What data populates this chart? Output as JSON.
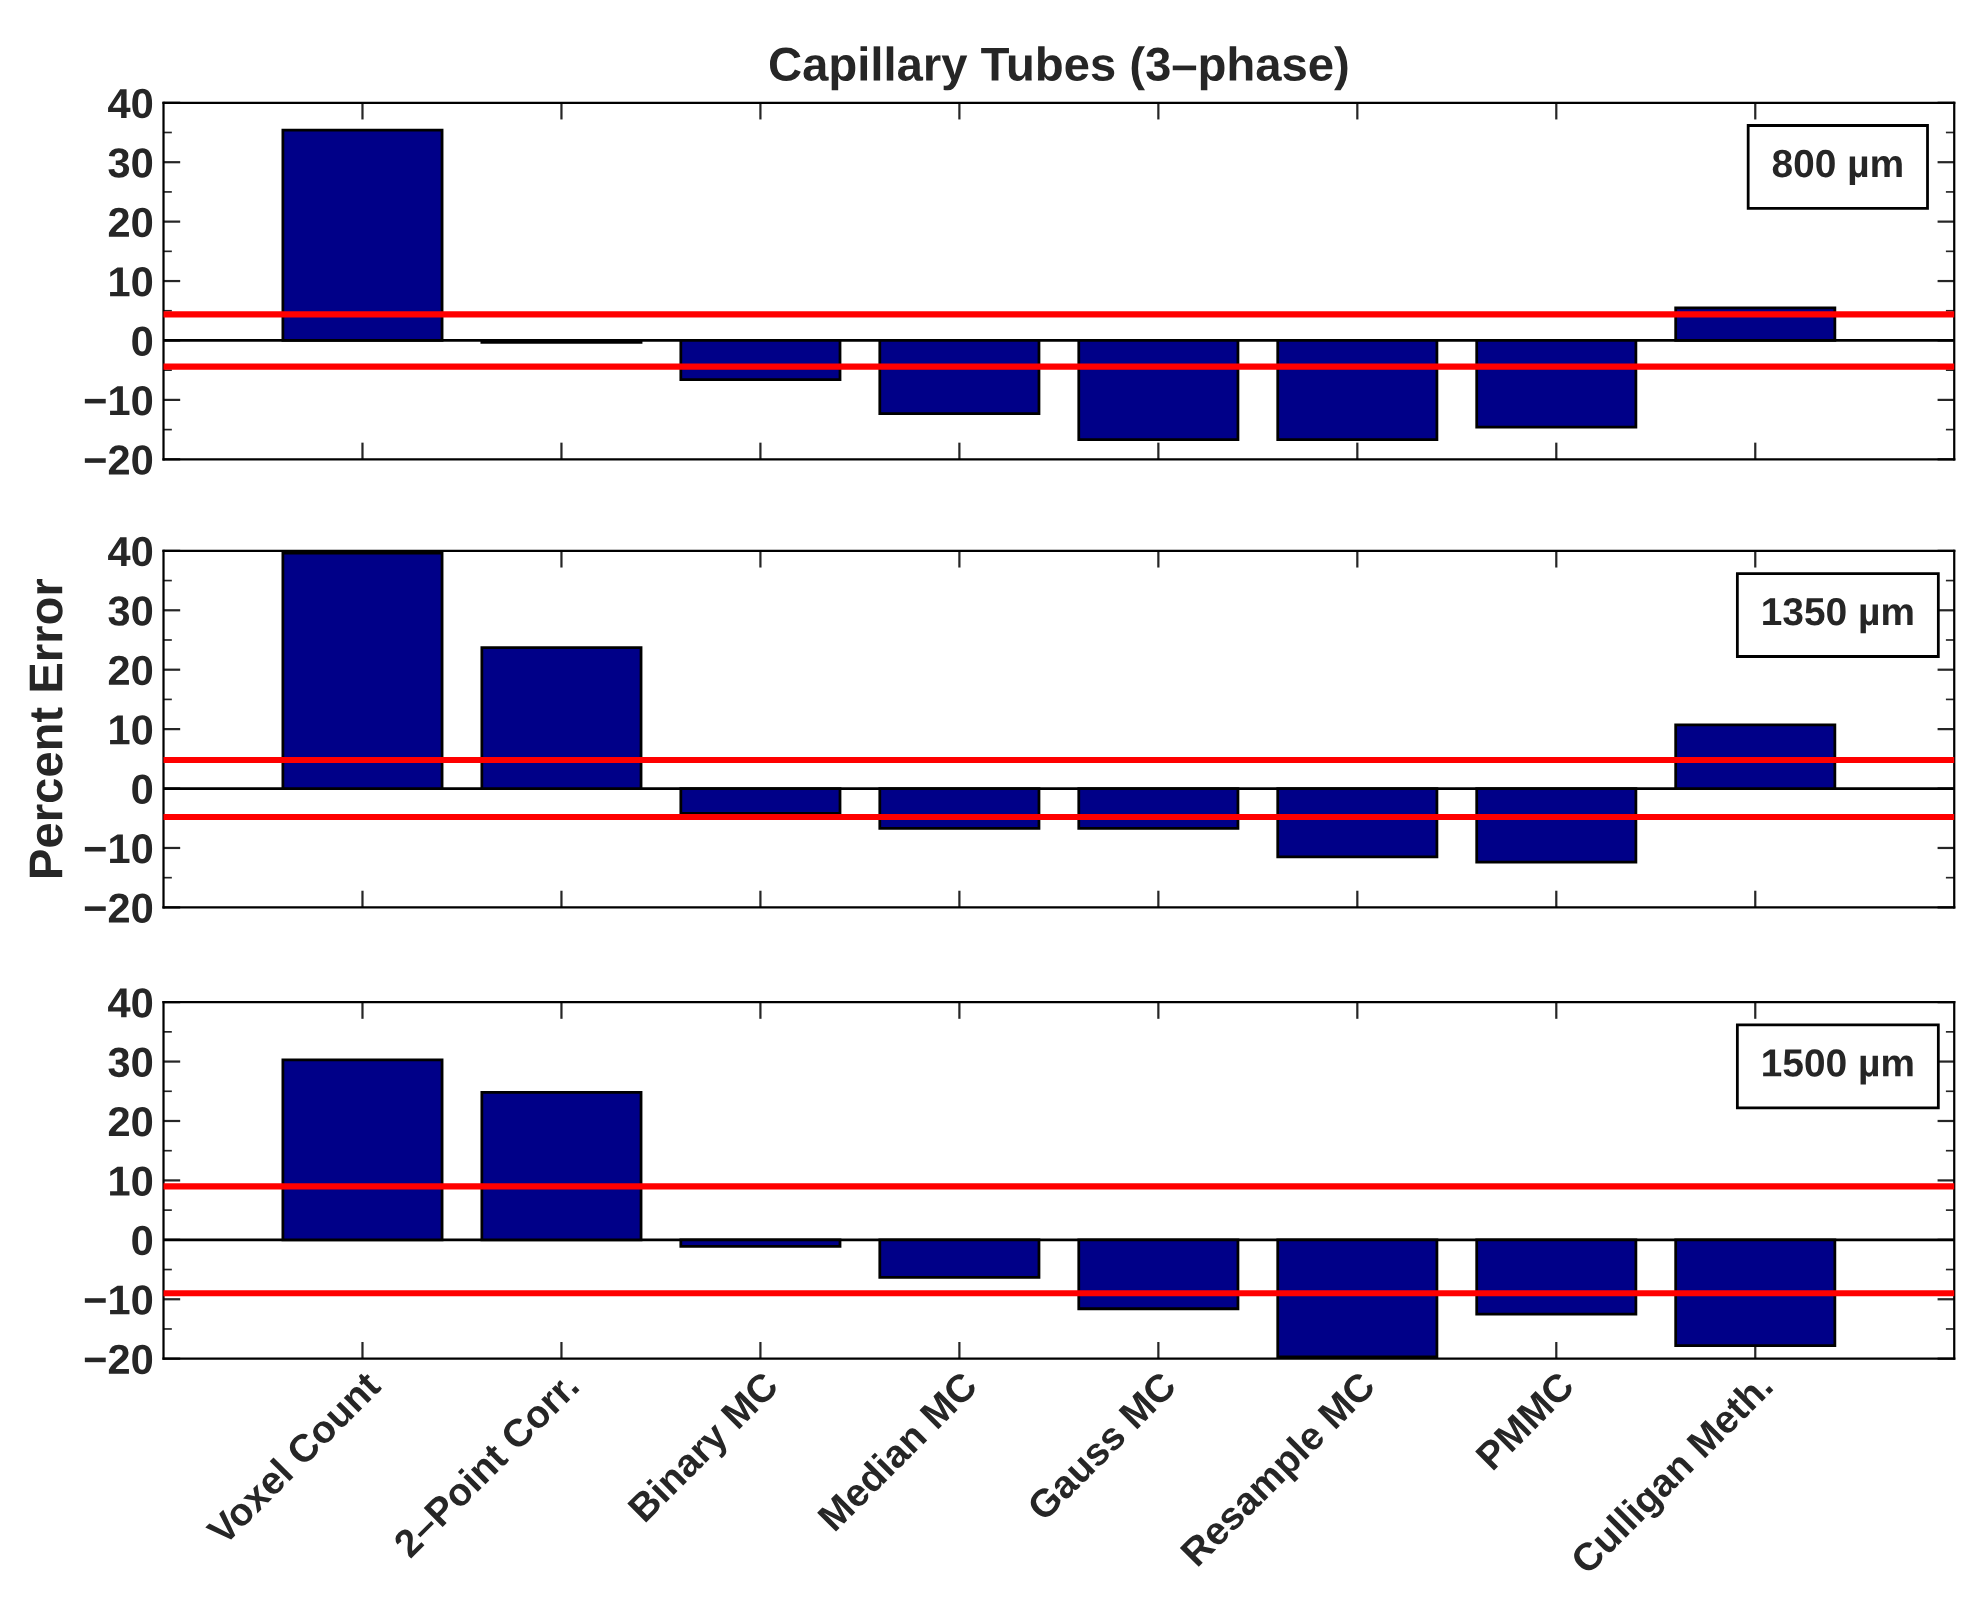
{
  "chart_data": [
    {
      "type": "bar",
      "title": "Capillary Tubes (3–phase)",
      "categories": [
        null,
        null,
        null,
        null,
        null,
        null,
        null,
        null
      ],
      "values": [
        35.4,
        -0.3,
        -6.6,
        -12.3,
        -16.7,
        -16.7,
        -14.6,
        5.5
      ],
      "color": "#000088",
      "ylim": [
        -20,
        40
      ],
      "yticks": [
        -20,
        -10,
        0,
        10,
        20,
        30,
        40
      ],
      "tick_labels": "y",
      "annotations": [
        "800 µm"
      ],
      "ref_lines": [
        {
          "axis": "y",
          "value": 0,
          "color": "#000000"
        },
        {
          "axis": "y",
          "value": 4.4,
          "color": "#ff0000"
        },
        {
          "axis": "y",
          "value": -4.4,
          "color": "#ff0000"
        }
      ]
    },
    {
      "type": "bar",
      "ylabel": "Percent Error",
      "categories": [
        null,
        null,
        null,
        null,
        null,
        null,
        null,
        null
      ],
      "values": [
        39.6,
        23.7,
        -4.2,
        -6.7,
        -6.7,
        -11.5,
        -12.4,
        10.7
      ],
      "color": "#000088",
      "ylim": [
        -20,
        40
      ],
      "yticks": [
        -20,
        -10,
        0,
        10,
        20,
        30,
        40
      ],
      "tick_labels": "y",
      "annotations": [
        "1350 µm"
      ],
      "ref_lines": [
        {
          "axis": "y",
          "value": 0,
          "color": "#000000"
        },
        {
          "axis": "y",
          "value": 4.8,
          "color": "#ff0000"
        },
        {
          "axis": "y",
          "value": -4.8,
          "color": "#ff0000"
        }
      ]
    },
    {
      "type": "bar",
      "categories": [
        "Voxel Count",
        "2–Point Corr.",
        "Binary MC",
        "Median MC",
        "Gauss MC",
        "Resample MC",
        "PMMC",
        "Culligan Meth."
      ],
      "values": [
        30.3,
        24.8,
        -1.1,
        -6.3,
        -11.6,
        -19.7,
        -12.5,
        -17.8
      ],
      "color": "#000088",
      "ylim": [
        -20,
        40
      ],
      "yticks": [
        -20,
        -10,
        0,
        10,
        20,
        30,
        40
      ],
      "annotations": [
        "1500 µm"
      ],
      "ref_lines": [
        {
          "axis": "y",
          "value": 0,
          "color": "#000000"
        },
        {
          "axis": "y",
          "value": 9,
          "color": "#ff0000"
        },
        {
          "axis": "y",
          "value": -9,
          "color": "#ff0000"
        }
      ]
    }
  ]
}
